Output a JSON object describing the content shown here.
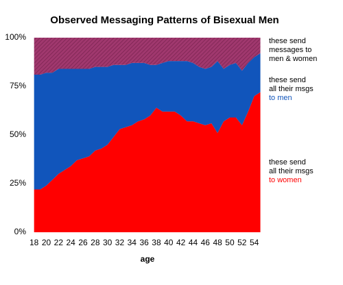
{
  "chart_data": {
    "type": "stacked-area",
    "title": "Observed Messaging Patterns of Bisexual Men",
    "x_label": "age",
    "x": [
      18,
      19,
      20,
      21,
      22,
      23,
      24,
      25,
      26,
      27,
      28,
      29,
      30,
      31,
      32,
      33,
      34,
      35,
      36,
      37,
      38,
      39,
      40,
      41,
      42,
      43,
      44,
      45,
      46,
      47,
      48,
      49,
      50,
      51,
      52,
      53,
      54,
      55
    ],
    "xlim": [
      17.7,
      55.5
    ],
    "xticks": [
      18,
      20,
      22,
      24,
      26,
      28,
      30,
      32,
      34,
      36,
      38,
      40,
      42,
      44,
      46,
      48,
      50,
      52,
      54
    ],
    "ylim": [
      0,
      100
    ],
    "yticks": [
      {
        "value": 0,
        "label": "0%"
      },
      {
        "value": 25,
        "label": "25%"
      },
      {
        "value": 50,
        "label": "50%"
      },
      {
        "value": 75,
        "label": "75%"
      },
      {
        "value": 100,
        "label": "100%"
      }
    ],
    "series": [
      {
        "color": "#ff0000",
        "values": [
          22,
          22,
          24,
          27,
          30,
          32,
          34,
          37,
          38,
          39,
          42,
          43,
          45,
          49,
          53,
          54,
          55,
          57,
          58,
          60,
          64,
          62,
          62,
          62,
          60,
          57,
          57,
          56,
          55,
          56,
          51,
          57,
          59,
          59,
          55,
          62,
          70,
          72
        ]
      },
      {
        "color": "#1155bb",
        "values": [
          59,
          59,
          58,
          55,
          54,
          52,
          50,
          47,
          46,
          45,
          43,
          42,
          40,
          37,
          33,
          32,
          32,
          30,
          29,
          26,
          22,
          25,
          26,
          26,
          28,
          31,
          30,
          29,
          29,
          29,
          37,
          27,
          27,
          28,
          28,
          25,
          20,
          20
        ]
      },
      {
        "color": "#993366",
        "values": [
          19,
          19,
          18,
          18,
          16,
          16,
          16,
          16,
          16,
          16,
          15,
          15,
          15,
          14,
          14,
          14,
          13,
          13,
          13,
          14,
          14,
          13,
          12,
          12,
          12,
          12,
          13,
          15,
          16,
          15,
          12,
          16,
          14,
          13,
          17,
          13,
          10,
          8
        ]
      }
    ],
    "annotations": [
      {
        "lines": [
          "these send",
          "messages to",
          "men & women"
        ],
        "colors": [
          "#000000",
          "#000000",
          "#000000"
        ]
      },
      {
        "lines": [
          "these send",
          "all their msgs",
          "to men"
        ],
        "colors": [
          "#000000",
          "#000000",
          "#1155bb"
        ]
      },
      {
        "lines": [
          "these send",
          "all their msgs",
          "to women"
        ],
        "colors": [
          "#000000",
          "#000000",
          "#ff0000"
        ]
      }
    ]
  }
}
